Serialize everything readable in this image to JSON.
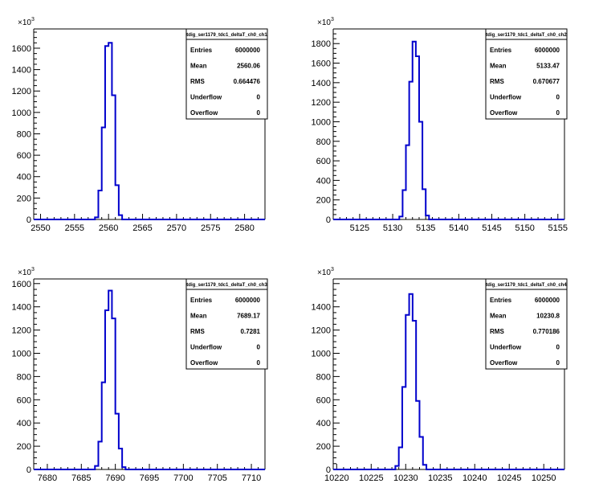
{
  "chart_data": [
    {
      "type": "histogram",
      "stats_title": "tdig_ser1179_tdc1_deltaT_ch0_ch1",
      "stats": [
        {
          "label": "Entries",
          "value": "6000000"
        },
        {
          "label": "Mean",
          "value": "2560.06"
        },
        {
          "label": "RMS",
          "value": "0.664476"
        },
        {
          "label": "Underflow",
          "value": "0"
        },
        {
          "label": "Overflow",
          "value": "0"
        }
      ],
      "y_multiplier": "10",
      "y_multiplier_exp": "3",
      "xlim": [
        2549,
        2583
      ],
      "ylim": [
        0,
        1780
      ],
      "xticks": [
        2550,
        2555,
        2560,
        2565,
        2570,
        2575,
        2580
      ],
      "yticks": [
        0,
        200,
        400,
        600,
        800,
        1000,
        1200,
        1400,
        1600
      ],
      "bins": [
        {
          "x0": 2558,
          "x1": 2558.5,
          "y": 20
        },
        {
          "x0": 2558.5,
          "x1": 2559,
          "y": 270
        },
        {
          "x0": 2559,
          "x1": 2559.5,
          "y": 860
        },
        {
          "x0": 2559.5,
          "x1": 2560,
          "y": 1620
        },
        {
          "x0": 2560,
          "x1": 2560.5,
          "y": 1650
        },
        {
          "x0": 2560.5,
          "x1": 2561,
          "y": 1160
        },
        {
          "x0": 2561,
          "x1": 2561.5,
          "y": 320
        },
        {
          "x0": 2561.5,
          "x1": 2562,
          "y": 40
        }
      ]
    },
    {
      "type": "histogram",
      "stats_title": "tdig_ser1179_tdc1_deltaT_ch0_ch2",
      "stats": [
        {
          "label": "Entries",
          "value": "6000000"
        },
        {
          "label": "Mean",
          "value": "5133.47"
        },
        {
          "label": "RMS",
          "value": "0.670677"
        },
        {
          "label": "Underflow",
          "value": "0"
        },
        {
          "label": "Overflow",
          "value": "0"
        }
      ],
      "y_multiplier": "10",
      "y_multiplier_exp": "3",
      "xlim": [
        5121,
        5156
      ],
      "ylim": [
        0,
        1950
      ],
      "xticks": [
        5125,
        5130,
        5135,
        5140,
        5145,
        5150,
        5155
      ],
      "yticks": [
        0,
        200,
        400,
        600,
        800,
        1000,
        1200,
        1400,
        1600,
        1800
      ],
      "bins": [
        {
          "x0": 5131,
          "x1": 5131.5,
          "y": 30
        },
        {
          "x0": 5131.5,
          "x1": 5132,
          "y": 300
        },
        {
          "x0": 5132,
          "x1": 5132.5,
          "y": 760
        },
        {
          "x0": 5132.5,
          "x1": 5133,
          "y": 1410
        },
        {
          "x0": 5133,
          "x1": 5133.5,
          "y": 1820
        },
        {
          "x0": 5133.5,
          "x1": 5134,
          "y": 1670
        },
        {
          "x0": 5134,
          "x1": 5134.5,
          "y": 1000
        },
        {
          "x0": 5134.5,
          "x1": 5135,
          "y": 310
        },
        {
          "x0": 5135,
          "x1": 5135.5,
          "y": 40
        }
      ]
    },
    {
      "type": "histogram",
      "stats_title": "tdig_ser1179_tdc1_deltaT_ch0_ch3",
      "stats": [
        {
          "label": "Entries",
          "value": "6000000"
        },
        {
          "label": "Mean",
          "value": "7689.17"
        },
        {
          "label": "RMS",
          "value": "0.7281"
        },
        {
          "label": "Underflow",
          "value": "0"
        },
        {
          "label": "Overflow",
          "value": "0"
        }
      ],
      "y_multiplier": "10",
      "y_multiplier_exp": "3",
      "xlim": [
        7678,
        7712
      ],
      "ylim": [
        0,
        1640
      ],
      "xticks": [
        7680,
        7685,
        7690,
        7695,
        7700,
        7705,
        7710
      ],
      "yticks": [
        0,
        200,
        400,
        600,
        800,
        1000,
        1200,
        1400,
        1600
      ],
      "bins": [
        {
          "x0": 7687,
          "x1": 7687.5,
          "y": 30
        },
        {
          "x0": 7687.5,
          "x1": 7688,
          "y": 240
        },
        {
          "x0": 7688,
          "x1": 7688.5,
          "y": 750
        },
        {
          "x0": 7688.5,
          "x1": 7689,
          "y": 1370
        },
        {
          "x0": 7689,
          "x1": 7689.5,
          "y": 1540
        },
        {
          "x0": 7689.5,
          "x1": 7690,
          "y": 1300
        },
        {
          "x0": 7690,
          "x1": 7690.5,
          "y": 480
        },
        {
          "x0": 7690.5,
          "x1": 7691,
          "y": 180
        },
        {
          "x0": 7691,
          "x1": 7691.5,
          "y": 20
        }
      ]
    },
    {
      "type": "histogram",
      "stats_title": "tdig_ser1179_tdc1_deltaT_ch0_ch4",
      "stats": [
        {
          "label": "Entries",
          "value": "6000000"
        },
        {
          "label": "Mean",
          "value": "10230.8"
        },
        {
          "label": "RMS",
          "value": "0.770186"
        },
        {
          "label": "Underflow",
          "value": "0"
        },
        {
          "label": "Overflow",
          "value": "0"
        }
      ],
      "y_multiplier": "10",
      "y_multiplier_exp": "3",
      "xlim": [
        10219.5,
        10253
      ],
      "ylim": [
        0,
        1640
      ],
      "xticks": [
        10220,
        10225,
        10230,
        10235,
        10240,
        10245,
        10250
      ],
      "yticks": [
        0,
        200,
        400,
        600,
        800,
        1000,
        1200,
        1400
      ],
      "bins": [
        {
          "x0": 10228.5,
          "x1": 10229,
          "y": 30
        },
        {
          "x0": 10229,
          "x1": 10229.5,
          "y": 190
        },
        {
          "x0": 10229.5,
          "x1": 10230,
          "y": 710
        },
        {
          "x0": 10230,
          "x1": 10230.5,
          "y": 1330
        },
        {
          "x0": 10230.5,
          "x1": 10231,
          "y": 1510
        },
        {
          "x0": 10231,
          "x1": 10231.5,
          "y": 1280
        },
        {
          "x0": 10231.5,
          "x1": 10232,
          "y": 590
        },
        {
          "x0": 10232,
          "x1": 10232.5,
          "y": 280
        },
        {
          "x0": 10232.5,
          "x1": 10233,
          "y": 40
        }
      ]
    }
  ]
}
